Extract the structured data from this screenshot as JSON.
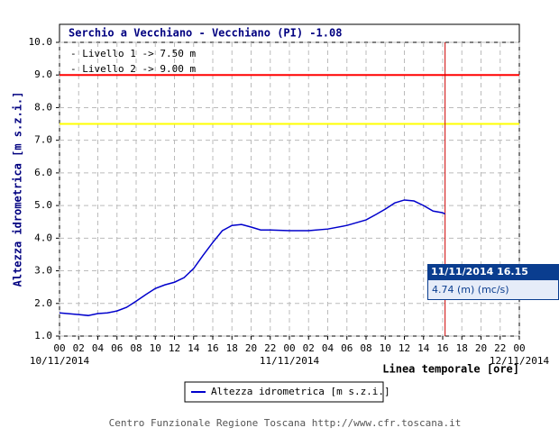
{
  "chart_data": {
    "type": "line",
    "title": "Serchio a Vecchiano - Vecchiano (PI) -1.08",
    "ylabel": "Altezza idrometrica [m s.z.i.]",
    "xlabel": "Linea temporale [ore]",
    "footer": "Centro Funzionale Regione Toscana http://www.cfr.toscana.it",
    "thresholds": [
      {
        "label": "- Livello 1 -> 7.50 m",
        "value": 7.5,
        "color": "#ffff00"
      },
      {
        "label": "- Livello 2 -> 9.00 m",
        "value": 9,
        "color": "#ff0000"
      }
    ],
    "x": [
      0,
      2,
      3,
      4,
      5,
      6,
      7,
      8,
      9,
      10,
      11,
      12,
      13,
      14,
      15,
      16,
      17,
      18,
      19,
      20,
      21,
      22,
      24,
      26,
      28,
      30,
      32,
      33,
      34,
      35,
      36,
      37,
      38,
      39,
      40,
      40.25
    ],
    "series": [
      {
        "name": "Altezza idrometrica [m s.z.i.]",
        "color": "#0000cc",
        "values": [
          1.71,
          1.66,
          1.63,
          1.69,
          1.71,
          1.77,
          1.88,
          2.07,
          2.27,
          2.46,
          2.57,
          2.65,
          2.79,
          3.07,
          3.48,
          3.87,
          4.23,
          4.39,
          4.42,
          4.34,
          4.25,
          4.25,
          4.23,
          4.23,
          4.28,
          4.39,
          4.56,
          4.72,
          4.89,
          5.08,
          5.17,
          5.14,
          5.0,
          4.83,
          4.78,
          4.74
        ]
      }
    ],
    "xlim": [
      0,
      48
    ],
    "xticks": [
      {
        "value": 0,
        "label": "00"
      },
      {
        "value": 2,
        "label": "02"
      },
      {
        "value": 4,
        "label": "04"
      },
      {
        "value": 6,
        "label": "06"
      },
      {
        "value": 8,
        "label": "08"
      },
      10,
      12,
      14,
      16,
      18,
      20,
      22,
      {
        "value": 24,
        "label": "00"
      },
      {
        "value": 26,
        "label": "02"
      },
      {
        "value": 28,
        "label": "04"
      },
      {
        "value": 30,
        "label": "06"
      },
      {
        "value": 32,
        "label": "08"
      },
      {
        "value": 34,
        "label": "10"
      },
      {
        "value": 36,
        "label": "12"
      },
      {
        "value": 38,
        "label": "14"
      },
      {
        "value": 40,
        "label": "16"
      },
      {
        "value": 42,
        "label": "18"
      },
      {
        "value": 44,
        "label": "20"
      },
      {
        "value": 46,
        "label": "22"
      },
      {
        "value": 48,
        "label": "00"
      }
    ],
    "date_labels": [
      {
        "value": 0,
        "label": "10/11/2014"
      },
      {
        "value": 24,
        "label": "11/11/2014"
      },
      {
        "value": 48,
        "label": "12/11/2014"
      }
    ],
    "ylim": [
      1,
      10
    ],
    "yticks": [
      {
        "value": 1,
        "label": "1.0"
      },
      {
        "value": 2,
        "label": "2.0"
      },
      {
        "value": 3,
        "label": "3.0"
      },
      {
        "value": 4,
        "label": "4.0"
      },
      {
        "value": 5,
        "label": "5.0"
      },
      {
        "value": 6,
        "label": "6.0"
      },
      {
        "value": 7,
        "label": "7.0"
      },
      {
        "value": 8,
        "label": "8.0"
      },
      {
        "value": 9,
        "label": "9.0"
      },
      {
        "value": 10,
        "label": "10.0"
      }
    ],
    "grid": true,
    "cursor": {
      "x": 40.25,
      "time": "11/11/2014 16.15",
      "reading": "4.74 (m) (mc/s)"
    }
  }
}
